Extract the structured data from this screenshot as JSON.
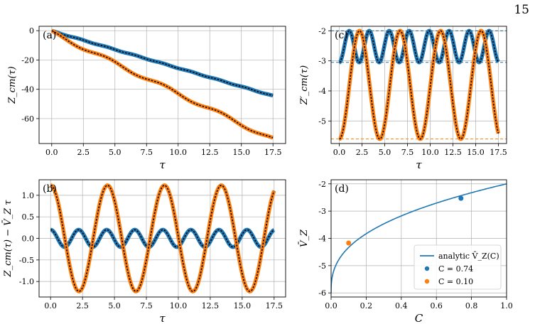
{
  "page_number": "15",
  "colors": {
    "blue": "#1f77b4",
    "orange": "#ff7f0e",
    "dark": "#000000",
    "grid": "#b0b0b0"
  },
  "chart_data": [
    {
      "id": "a",
      "type": "line",
      "panel_label": "(a)",
      "xlabel": "τ",
      "ylabel": "Z_cm(τ)",
      "xlim": [
        -1,
        18.5
      ],
      "ylim": [
        -77,
        3
      ],
      "xticks": [
        0,
        2.5,
        5,
        7.5,
        10,
        12.5,
        15,
        17.5
      ],
      "xticklabels": [
        "0.0",
        "2.5",
        "5.0",
        "7.5",
        "10.0",
        "12.5",
        "15.0",
        "17.5"
      ],
      "yticks": [
        0,
        -20,
        -40,
        -60
      ],
      "yticklabels": [
        "0",
        "-20",
        "-40",
        "-60"
      ],
      "grid": true,
      "series": [
        {
          "color": "#1f77b4",
          "formula": "Z = vbar*t + A*(cos(w*t) - 1)",
          "vbar": -2.53,
          "A": 0.2,
          "omega": 2.86,
          "t_range": [
            0,
            17.5
          ]
        },
        {
          "color": "#ff7f0e",
          "formula": "Z = vbar*t + A*(cos(w*t) - 1)",
          "vbar": -4.17,
          "A": 1.23,
          "omega": 1.41,
          "t_range": [
            0,
            17.5
          ]
        }
      ]
    },
    {
      "id": "c",
      "type": "line",
      "panel_label": "(c)",
      "xlabel": "τ",
      "ylabel": "Z′_cm(τ)",
      "xlim": [
        -0.9,
        18.4
      ],
      "ylim": [
        -5.75,
        -1.85
      ],
      "xticks": [
        0,
        2.5,
        5,
        7.5,
        10,
        12.5,
        15,
        17.5
      ],
      "xticklabels": [
        "0.0",
        "2.5",
        "5.0",
        "7.5",
        "10.0",
        "12.5",
        "15.0",
        "17.5"
      ],
      "yticks": [
        -2,
        -3,
        -4,
        -5
      ],
      "yticklabels": [
        "-2",
        "-3",
        "-4",
        "-5"
      ],
      "grid": true,
      "series": [
        {
          "color": "#1f77b4",
          "min": -3.05,
          "max": -2.0,
          "omega": 2.86,
          "t_range": [
            0,
            17.5
          ]
        },
        {
          "color": "#ff7f0e",
          "min": -5.6,
          "max": -2.0,
          "omega": 1.41,
          "t_range": [
            0,
            17.5
          ]
        }
      ],
      "hlines": [
        {
          "y": -2.0,
          "color": "#ff7f0e"
        },
        {
          "y": -5.6,
          "color": "#ff7f0e"
        },
        {
          "y": -3.05,
          "color": "#1f77b4"
        },
        {
          "y": -2.0,
          "color": "#1f77b4"
        }
      ]
    },
    {
      "id": "b",
      "type": "line",
      "panel_label": "(b)",
      "xlabel": "τ",
      "ylabel": "Z_cm(τ) − V̄_Z τ",
      "xlim": [
        -0.9,
        18.4
      ],
      "ylim": [
        -1.36,
        1.36
      ],
      "xticks": [
        0,
        2.5,
        5,
        7.5,
        10,
        12.5,
        15,
        17.5
      ],
      "xticklabels": [
        "0.0",
        "2.5",
        "5.0",
        "7.5",
        "10.0",
        "12.5",
        "15.0",
        "17.5"
      ],
      "yticks": [
        1.0,
        0.5,
        0.0,
        -0.5,
        -1.0
      ],
      "yticklabels": [
        "1.0",
        "0.5",
        "0.0",
        "-0.5",
        "-1.0"
      ],
      "grid": true,
      "series": [
        {
          "color": "#1f77b4",
          "amplitude": 0.2,
          "omega": 2.86,
          "t_range": [
            0,
            17.5
          ]
        },
        {
          "color": "#ff7f0e",
          "amplitude": 1.23,
          "omega": 1.41,
          "t_range": [
            0,
            17.5
          ]
        }
      ]
    },
    {
      "id": "d",
      "type": "line",
      "panel_label": "(d)",
      "xlabel": "C",
      "ylabel": "V̄_Z",
      "xlim": [
        0,
        1.0
      ],
      "ylim": [
        -6.15,
        -1.85
      ],
      "xticks": [
        0,
        0.2,
        0.4,
        0.6,
        0.8,
        1.0
      ],
      "xticklabels": [
        "0.0",
        "0.2",
        "0.4",
        "0.6",
        "0.8",
        "1.0"
      ],
      "yticks": [
        -2,
        -3,
        -4,
        -5,
        -6
      ],
      "yticklabels": [
        "-2",
        "-3",
        "-4",
        "-5",
        "-6"
      ],
      "grid": true,
      "curve": {
        "color": "#1f77b4",
        "formula": "V = -6 + 4*C^0.38",
        "x_range": [
          0,
          1
        ]
      },
      "points": [
        {
          "x": 0.74,
          "y": -2.53,
          "color": "#1f77b4"
        },
        {
          "x": 0.1,
          "y": -4.17,
          "color": "#ff7f0e"
        }
      ],
      "legend": {
        "position": "lower-right",
        "entries": [
          "analytic V̄_Z(C)",
          "C = 0.74",
          "C = 0.10"
        ]
      }
    }
  ]
}
